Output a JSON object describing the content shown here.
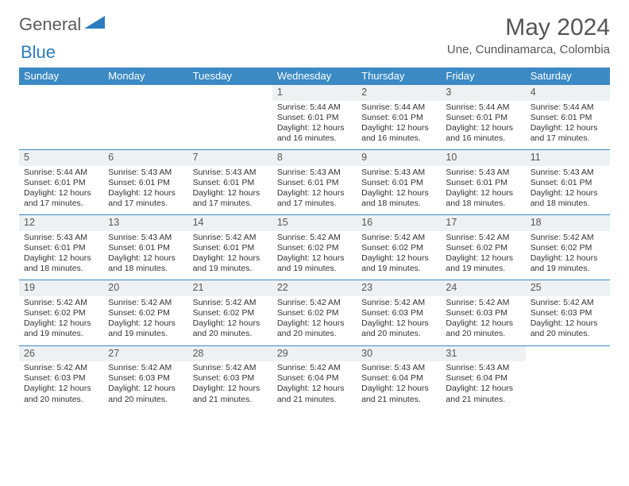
{
  "brand": {
    "name1": "General",
    "name2": "Blue"
  },
  "title": "May 2024",
  "location": "Une, Cundinamarca, Colombia",
  "colors": {
    "header_bg": "#3b8ac4",
    "header_fg": "#ffffff",
    "daynum_bg": "#eef1f3",
    "border": "#3b8ac4",
    "text": "#333333",
    "title": "#555555"
  },
  "weekdays": [
    "Sunday",
    "Monday",
    "Tuesday",
    "Wednesday",
    "Thursday",
    "Friday",
    "Saturday"
  ],
  "weeks": [
    [
      null,
      null,
      null,
      {
        "n": "1",
        "sr": "5:44 AM",
        "ss": "6:01 PM",
        "dl": "12 hours and 16 minutes."
      },
      {
        "n": "2",
        "sr": "5:44 AM",
        "ss": "6:01 PM",
        "dl": "12 hours and 16 minutes."
      },
      {
        "n": "3",
        "sr": "5:44 AM",
        "ss": "6:01 PM",
        "dl": "12 hours and 16 minutes."
      },
      {
        "n": "4",
        "sr": "5:44 AM",
        "ss": "6:01 PM",
        "dl": "12 hours and 17 minutes."
      }
    ],
    [
      {
        "n": "5",
        "sr": "5:44 AM",
        "ss": "6:01 PM",
        "dl": "12 hours and 17 minutes."
      },
      {
        "n": "6",
        "sr": "5:43 AM",
        "ss": "6:01 PM",
        "dl": "12 hours and 17 minutes."
      },
      {
        "n": "7",
        "sr": "5:43 AM",
        "ss": "6:01 PM",
        "dl": "12 hours and 17 minutes."
      },
      {
        "n": "8",
        "sr": "5:43 AM",
        "ss": "6:01 PM",
        "dl": "12 hours and 17 minutes."
      },
      {
        "n": "9",
        "sr": "5:43 AM",
        "ss": "6:01 PM",
        "dl": "12 hours and 18 minutes."
      },
      {
        "n": "10",
        "sr": "5:43 AM",
        "ss": "6:01 PM",
        "dl": "12 hours and 18 minutes."
      },
      {
        "n": "11",
        "sr": "5:43 AM",
        "ss": "6:01 PM",
        "dl": "12 hours and 18 minutes."
      }
    ],
    [
      {
        "n": "12",
        "sr": "5:43 AM",
        "ss": "6:01 PM",
        "dl": "12 hours and 18 minutes."
      },
      {
        "n": "13",
        "sr": "5:43 AM",
        "ss": "6:01 PM",
        "dl": "12 hours and 18 minutes."
      },
      {
        "n": "14",
        "sr": "5:42 AM",
        "ss": "6:01 PM",
        "dl": "12 hours and 19 minutes."
      },
      {
        "n": "15",
        "sr": "5:42 AM",
        "ss": "6:02 PM",
        "dl": "12 hours and 19 minutes."
      },
      {
        "n": "16",
        "sr": "5:42 AM",
        "ss": "6:02 PM",
        "dl": "12 hours and 19 minutes."
      },
      {
        "n": "17",
        "sr": "5:42 AM",
        "ss": "6:02 PM",
        "dl": "12 hours and 19 minutes."
      },
      {
        "n": "18",
        "sr": "5:42 AM",
        "ss": "6:02 PM",
        "dl": "12 hours and 19 minutes."
      }
    ],
    [
      {
        "n": "19",
        "sr": "5:42 AM",
        "ss": "6:02 PM",
        "dl": "12 hours and 19 minutes."
      },
      {
        "n": "20",
        "sr": "5:42 AM",
        "ss": "6:02 PM",
        "dl": "12 hours and 19 minutes."
      },
      {
        "n": "21",
        "sr": "5:42 AM",
        "ss": "6:02 PM",
        "dl": "12 hours and 20 minutes."
      },
      {
        "n": "22",
        "sr": "5:42 AM",
        "ss": "6:02 PM",
        "dl": "12 hours and 20 minutes."
      },
      {
        "n": "23",
        "sr": "5:42 AM",
        "ss": "6:03 PM",
        "dl": "12 hours and 20 minutes."
      },
      {
        "n": "24",
        "sr": "5:42 AM",
        "ss": "6:03 PM",
        "dl": "12 hours and 20 minutes."
      },
      {
        "n": "25",
        "sr": "5:42 AM",
        "ss": "6:03 PM",
        "dl": "12 hours and 20 minutes."
      }
    ],
    [
      {
        "n": "26",
        "sr": "5:42 AM",
        "ss": "6:03 PM",
        "dl": "12 hours and 20 minutes."
      },
      {
        "n": "27",
        "sr": "5:42 AM",
        "ss": "6:03 PM",
        "dl": "12 hours and 20 minutes."
      },
      {
        "n": "28",
        "sr": "5:42 AM",
        "ss": "6:03 PM",
        "dl": "12 hours and 21 minutes."
      },
      {
        "n": "29",
        "sr": "5:42 AM",
        "ss": "6:04 PM",
        "dl": "12 hours and 21 minutes."
      },
      {
        "n": "30",
        "sr": "5:43 AM",
        "ss": "6:04 PM",
        "dl": "12 hours and 21 minutes."
      },
      {
        "n": "31",
        "sr": "5:43 AM",
        "ss": "6:04 PM",
        "dl": "12 hours and 21 minutes."
      },
      null
    ]
  ],
  "labels": {
    "sunrise": "Sunrise:",
    "sunset": "Sunset:",
    "daylight": "Daylight:"
  }
}
